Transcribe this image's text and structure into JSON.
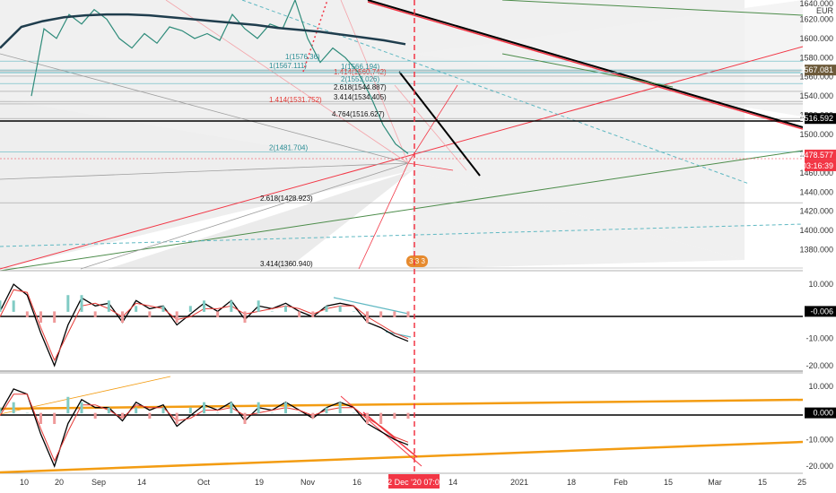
{
  "currency": "EUR",
  "chart_data": [
    {
      "type": "line",
      "panel": "price",
      "title": "",
      "ylim": [
        1360,
        1640
      ],
      "yticks": [
        1380,
        1400,
        1420,
        1440,
        1460,
        1480,
        1500,
        1520,
        1540,
        1560,
        1580,
        1600,
        1620
      ],
      "ytick_labels": [
        "1380.000",
        "1400.000",
        "1420.000",
        "1440.000",
        "1460.000",
        "1480.000",
        "1500.000",
        "1520.000",
        "1540.000",
        "1560.000",
        "1580.000",
        "1600.000",
        "1620.000"
      ],
      "top_label": "1640.000",
      "price_labels": [
        {
          "value": 1567.081,
          "text": "1567.081",
          "color": "#6d5a3a"
        },
        {
          "value": 1516.592,
          "text": "1516.592",
          "color": "#000000"
        },
        {
          "value": 1478.577,
          "text": "1478.577",
          "color": "#f23645"
        }
      ],
      "countdown": "03:16:39",
      "fib_levels": [
        {
          "text": "1(1576.36)",
          "value": 1576.36
        },
        {
          "text": "1(1567.111)",
          "value": 1567.111
        },
        {
          "text": "1(1566.194)",
          "value": 1566.194
        },
        {
          "text": "1.414(1560.742)",
          "value": 1560.742
        },
        {
          "text": "2(1553.026)",
          "value": 1553.026
        },
        {
          "text": "2.618(1544.887)",
          "value": 1544.887
        },
        {
          "text": "3.414(1534.405)",
          "value": 1534.405
        },
        {
          "text": "1.414(1531.752)",
          "value": 1531.752
        },
        {
          "text": "4.764(1516.627)",
          "value": 1516.627
        },
        {
          "text": "2(1481.704)",
          "value": 1481.704
        },
        {
          "text": "2.618(1428.923)",
          "value": 1428.923
        },
        {
          "text": "3.414(1360.940)",
          "value": 1360.94
        }
      ],
      "series": [
        {
          "values": [
            1540,
            1610,
            1600,
            1625,
            1615,
            1630,
            1620,
            1600,
            1590,
            1605,
            1595,
            1612,
            1608,
            1600,
            1605,
            1598,
            1625,
            1610,
            1600,
            1615,
            1610,
            1640,
            1600,
            1575,
            1590,
            1580,
            1565,
            1540,
            1510,
            1490,
            1480
          ]
        },
        {
          "values": [
            1590,
            1612,
            1618,
            1622,
            1624,
            1625,
            1625,
            1624,
            1622,
            1620,
            1618,
            1616,
            1614,
            1611,
            1609,
            1607,
            1604,
            1601,
            1598,
            1594
          ]
        }
      ]
    },
    {
      "type": "line",
      "panel": "oscillator-1",
      "ylim": [
        -22,
        14
      ],
      "yticks": [
        10,
        -10,
        -20
      ],
      "ytick_labels": [
        "10.000",
        "-10.000",
        "-20.000"
      ],
      "value_label": "-0.006",
      "series": [
        {
          "values": [
            0,
            10,
            6,
            -8,
            -20,
            -5,
            5,
            2,
            3,
            -4,
            4,
            1,
            2,
            -5,
            -1,
            3,
            0,
            4,
            -3,
            2,
            1,
            3,
            0,
            -2,
            2,
            3,
            2,
            -4,
            -6,
            -9,
            -11
          ]
        },
        {
          "values": [
            -2,
            8,
            7,
            -6,
            -18,
            -8,
            2,
            3,
            1,
            -2,
            3,
            2,
            1,
            -3,
            -2,
            1,
            1,
            2,
            -1,
            0,
            1,
            2,
            1,
            -1,
            1,
            2,
            2,
            -2,
            -5,
            -8,
            -10
          ]
        }
      ]
    },
    {
      "type": "line",
      "panel": "oscillator-2",
      "ylim": [
        -22,
        14
      ],
      "yticks": [
        10,
        -10,
        -20
      ],
      "ytick_labels": [
        "10.000",
        "-10.000",
        "-20.000"
      ],
      "value_label": "0.000",
      "series": [
        {
          "values": [
            0,
            9,
            7,
            -8,
            -20,
            -4,
            5,
            2,
            2,
            -3,
            4,
            1,
            3,
            -5,
            -1,
            3,
            1,
            4,
            -3,
            2,
            1,
            4,
            1,
            -2,
            2,
            4,
            2,
            -4,
            -7,
            -10,
            -12
          ]
        },
        {
          "values": [
            -1,
            7,
            7,
            -6,
            -18,
            -7,
            3,
            3,
            1,
            -2,
            3,
            2,
            2,
            -3,
            -2,
            1,
            1,
            2,
            -1,
            0,
            1,
            2,
            1,
            -1,
            1,
            2,
            2,
            -2,
            -5,
            -9,
            -11
          ]
        }
      ]
    }
  ],
  "x_axis": {
    "labels": [
      "10",
      "20",
      "Sep",
      "14",
      "Oct",
      "19",
      "Nov",
      "16",
      "14",
      "2021",
      "18",
      "Feb",
      "15",
      "Mar",
      "15",
      "25"
    ],
    "cursor_label": "02 Dec '20   07:00"
  },
  "badge": "3 3 3"
}
